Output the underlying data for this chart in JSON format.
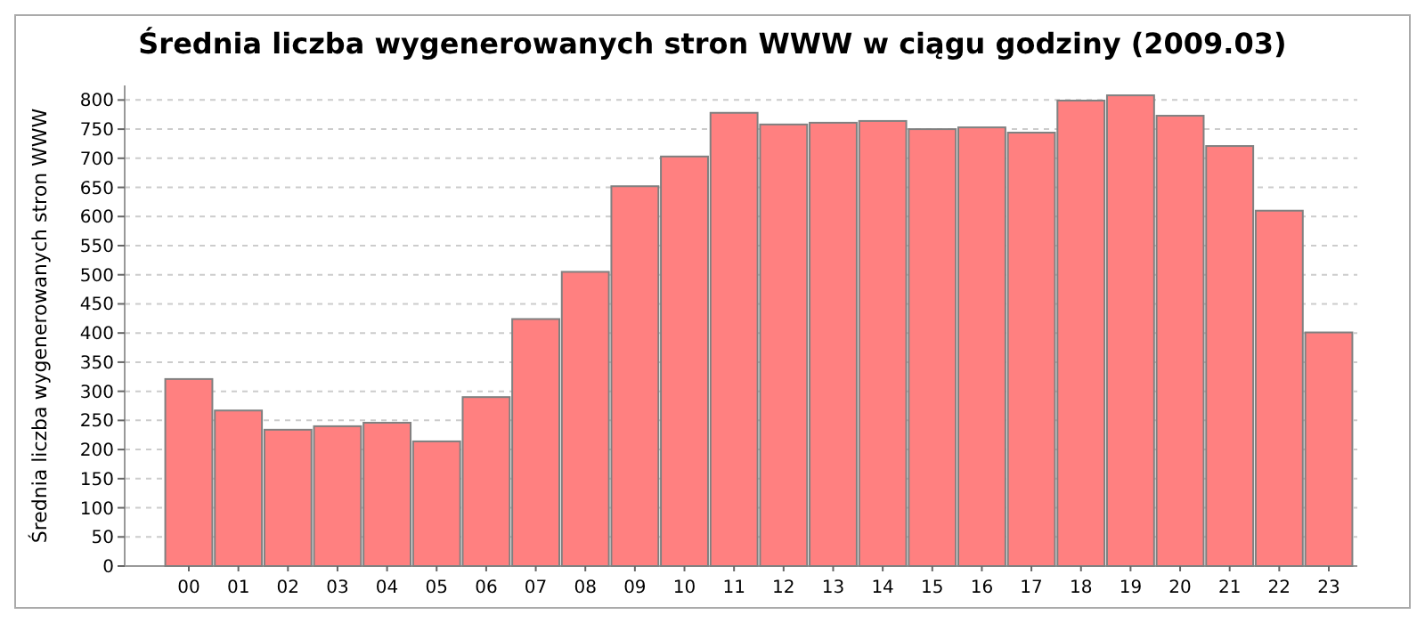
{
  "chart_data": {
    "type": "bar",
    "title": "Średnia liczba wygenerowanych stron WWW w ciągu godziny (2009.03)",
    "ylabel": "Średnia liczba wygenerowanych stron WWW",
    "categories": [
      "00",
      "01",
      "02",
      "03",
      "04",
      "05",
      "06",
      "07",
      "08",
      "09",
      "10",
      "11",
      "12",
      "13",
      "14",
      "15",
      "16",
      "17",
      "18",
      "19",
      "20",
      "21",
      "22",
      "23"
    ],
    "values": [
      321,
      267,
      234,
      240,
      246,
      214,
      290,
      424,
      505,
      652,
      703,
      778,
      758,
      761,
      764,
      750,
      753,
      744,
      799,
      808,
      773,
      721,
      610,
      401
    ],
    "color": "#ff8080",
    "ylim": [
      0,
      825
    ],
    "yticks": [
      0,
      50,
      100,
      150,
      200,
      250,
      300,
      350,
      400,
      450,
      500,
      550,
      600,
      650,
      700,
      750,
      800
    ],
    "grid": "y"
  }
}
